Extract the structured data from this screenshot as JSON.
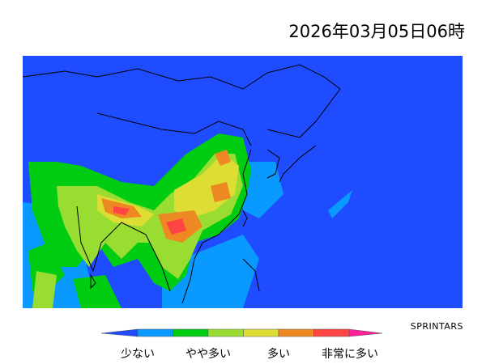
{
  "header": {
    "title": "2026年03月05日06時"
  },
  "credit": "SPRINTARS",
  "legend": {
    "labels": [
      "少ない",
      "やや多い",
      "多い",
      "非常に多い"
    ]
  }
}
